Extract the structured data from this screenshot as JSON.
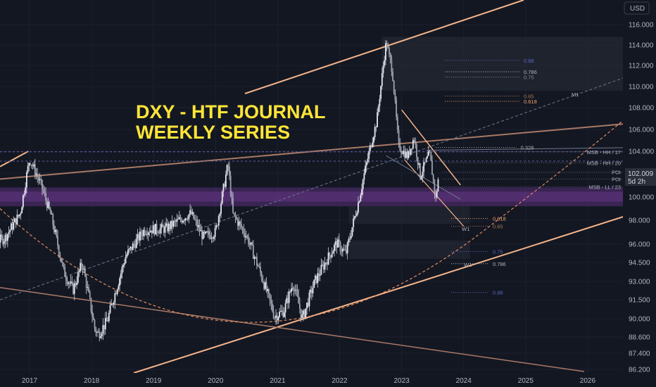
{
  "chart_data": {
    "type": "candlestick",
    "title_lines": [
      "DXY - HTF JOURNAL",
      "WEEKLY SERIES"
    ],
    "currency_label": "USD",
    "x_years": [
      "2017",
      "2018",
      "2019",
      "2020",
      "2021",
      "2022",
      "2023",
      "2024",
      "2025",
      "2026"
    ],
    "y_ticks": [
      "116.000",
      "114.000",
      "112.000",
      "110.000",
      "108.000",
      "106.000",
      "104.000",
      "102.000",
      "100.000",
      "98.000",
      "96.000",
      "94.500",
      "93.000",
      "91.500",
      "90.000",
      "88.600",
      "87.400",
      "86.200"
    ],
    "last_price": "102.009",
    "countdown": "5d 2h",
    "price_anchors": [
      [
        "2016.05",
        95.5
      ],
      [
        "2016.6",
        96.5
      ],
      [
        "2016.85",
        98.6
      ],
      [
        "2017.0",
        103.3
      ],
      [
        "2017.2",
        100.8
      ],
      [
        "2017.35",
        98.3
      ],
      [
        "2017.55",
        93.8
      ],
      [
        "2017.7",
        92.3
      ],
      [
        "2017.85",
        94.5
      ],
      [
        "2018.05",
        89.3
      ],
      [
        "2018.1",
        88.8
      ],
      [
        "2018.25",
        89.8
      ],
      [
        "2018.55",
        95.0
      ],
      [
        "2018.85",
        97.2
      ],
      [
        "2019.2",
        97.3
      ],
      [
        "2019.6",
        98.6
      ],
      [
        "2019.8",
        96.6
      ],
      [
        "2020.0",
        97.0
      ],
      [
        "2020.2",
        102.8
      ],
      [
        "2020.28",
        98.5
      ],
      [
        "2020.5",
        96.7
      ],
      [
        "2020.75",
        93.3
      ],
      [
        "2020.95",
        90.2
      ],
      [
        "2021.1",
        90.6
      ],
      [
        "2021.25",
        92.9
      ],
      [
        "2021.4",
        90.0
      ],
      [
        "2021.6",
        93.0
      ],
      [
        "2021.95",
        96.1
      ],
      [
        "2022.1",
        95.2
      ],
      [
        "2022.3",
        99.5
      ],
      [
        "2022.5",
        104.5
      ],
      [
        "2022.6",
        106.8
      ],
      [
        "2022.75",
        114.3
      ],
      [
        "2022.85",
        111.5
      ],
      [
        "2022.95",
        104.5
      ],
      [
        "2023.1",
        103.5
      ],
      [
        "2023.2",
        105.3
      ],
      [
        "2023.3",
        101.8
      ],
      [
        "2023.45",
        103.8
      ],
      [
        "2023.55",
        99.8
      ],
      [
        "2023.6",
        102.0
      ]
    ],
    "fib_levels": [
      {
        "label": "0.88",
        "price": 112.5,
        "color": "#5b67c4"
      },
      {
        "label": "0.786",
        "price": 111.4,
        "color": "#b2b5be"
      },
      {
        "label": "0.75",
        "price": 110.9,
        "color": "#878b94"
      },
      {
        "label": "0.65",
        "price": 109.1,
        "color": "#a57a52"
      },
      {
        "label": "0.618",
        "price": 108.6,
        "color": "#f0a56e"
      },
      {
        "label": "0.328",
        "price": 104.35,
        "color": "#b2b5be"
      },
      {
        "label": "0.618",
        "price": 98.15,
        "color": "#f0a56e"
      },
      {
        "label": "0.65",
        "price": 97.5,
        "color": "#a57a52"
      },
      {
        "label": "0.75",
        "price": 95.4,
        "color": "#5b67c4"
      },
      {
        "label": "0.786",
        "price": 94.4,
        "color": "#b2b5be"
      },
      {
        "label": "0.88",
        "price": 92.1,
        "color": "#5b67c4"
      }
    ],
    "structure_levels": [
      {
        "label": "MSB - HH / 17",
        "price": 103.95
      },
      {
        "label": "MSB - HH / 20",
        "price": 102.95
      },
      {
        "label": "POI",
        "price": 102.1
      },
      {
        "label": "POI",
        "price": 101.5
      },
      {
        "label": "MSB - LL / 23",
        "price": 100.85
      }
    ],
    "markers": [
      {
        "label": "M1"
      },
      {
        "label": "W1"
      },
      {
        "label": "W1"
      }
    ],
    "colors": {
      "background": "#131722",
      "candles": "#d1d4dc",
      "trendline": "#f6b48a",
      "brown_line": "#a87966",
      "dashed_line": "#6c7a8c",
      "curve": "#e08a5e",
      "zone": "#5a2f7a",
      "title": "#ffe536"
    }
  }
}
